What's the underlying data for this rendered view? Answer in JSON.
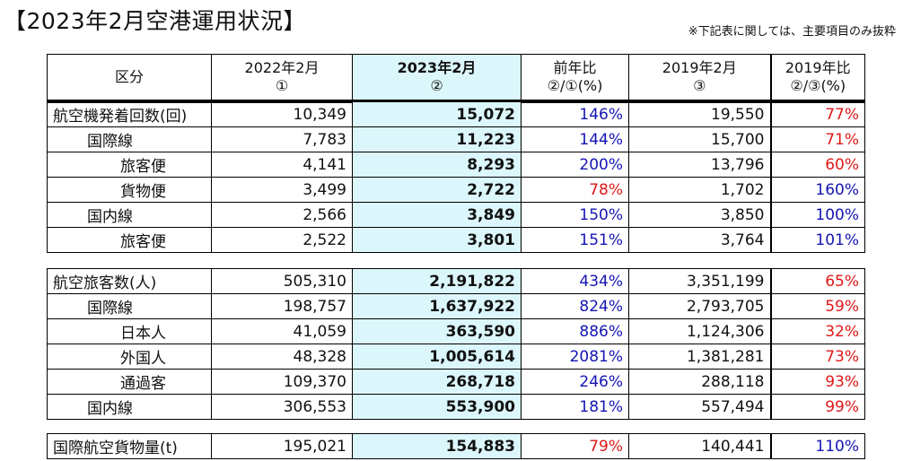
{
  "title": "【2023年2月空港運用状況】",
  "note": "※下記表に関しては、主要項目のみ抜粋",
  "headers": [
    {
      "l1": "区分",
      "l2": ""
    },
    {
      "l1": "2022年2月",
      "l2": "①"
    },
    {
      "l1": "2023年2月",
      "l2": "②"
    },
    {
      "l1": "前年比",
      "l2": "②/①(%)"
    },
    {
      "l1": "2019年2月",
      "l2": "③"
    },
    {
      "l1": "2019年比",
      "l2": "②/③(%)"
    }
  ],
  "colors": {
    "highlight": "#dcf7fb",
    "up": "#1414b4",
    "down": "#e01818"
  },
  "sections": [
    {
      "rows": [
        {
          "label": "航空機発着回数(回)",
          "indent": 0,
          "y2022": "10,349",
          "y2023": "15,072",
          "yoy": "146%",
          "yoy_c": "blue",
          "y2019": "19,550",
          "vs2019": "77%",
          "vs_c": "red"
        },
        {
          "label": "国際線",
          "indent": 1,
          "y2022": "7,783",
          "y2023": "11,223",
          "yoy": "144%",
          "yoy_c": "blue",
          "y2019": "15,700",
          "vs2019": "71%",
          "vs_c": "red"
        },
        {
          "label": "旅客便",
          "indent": 2,
          "y2022": "4,141",
          "y2023": "8,293",
          "yoy": "200%",
          "yoy_c": "blue",
          "y2019": "13,796",
          "vs2019": "60%",
          "vs_c": "red"
        },
        {
          "label": "貨物便",
          "indent": 2,
          "y2022": "3,499",
          "y2023": "2,722",
          "yoy": "78%",
          "yoy_c": "red",
          "y2019": "1,702",
          "vs2019": "160%",
          "vs_c": "blue"
        },
        {
          "label": "国内線",
          "indent": 1,
          "y2022": "2,566",
          "y2023": "3,849",
          "yoy": "150%",
          "yoy_c": "blue",
          "y2019": "3,850",
          "vs2019": "100%",
          "vs_c": "blue"
        },
        {
          "label": "旅客便",
          "indent": 2,
          "y2022": "2,522",
          "y2023": "3,801",
          "yoy": "151%",
          "yoy_c": "blue",
          "y2019": "3,764",
          "vs2019": "101%",
          "vs_c": "blue"
        }
      ]
    },
    {
      "rows": [
        {
          "label": "航空旅客数(人)",
          "indent": 0,
          "y2022": "505,310",
          "y2023": "2,191,822",
          "yoy": "434%",
          "yoy_c": "blue",
          "y2019": "3,351,199",
          "vs2019": "65%",
          "vs_c": "red"
        },
        {
          "label": "国際線",
          "indent": 1,
          "y2022": "198,757",
          "y2023": "1,637,922",
          "yoy": "824%",
          "yoy_c": "blue",
          "y2019": "2,793,705",
          "vs2019": "59%",
          "vs_c": "red"
        },
        {
          "label": "日本人",
          "indent": 2,
          "y2022": "41,059",
          "y2023": "363,590",
          "yoy": "886%",
          "yoy_c": "blue",
          "y2019": "1,124,306",
          "vs2019": "32%",
          "vs_c": "red"
        },
        {
          "label": "外国人",
          "indent": 2,
          "y2022": "48,328",
          "y2023": "1,005,614",
          "yoy": "2081%",
          "yoy_c": "blue",
          "y2019": "1,381,281",
          "vs2019": "73%",
          "vs_c": "red"
        },
        {
          "label": "通過客",
          "indent": 2,
          "y2022": "109,370",
          "y2023": "268,718",
          "yoy": "246%",
          "yoy_c": "blue",
          "y2019": "288,118",
          "vs2019": "93%",
          "vs_c": "red"
        },
        {
          "label": "国内線",
          "indent": 1,
          "y2022": "306,553",
          "y2023": "553,900",
          "yoy": "181%",
          "yoy_c": "blue",
          "y2019": "557,494",
          "vs2019": "99%",
          "vs_c": "red"
        }
      ]
    },
    {
      "rows": [
        {
          "label": "国際航空貨物量(t)",
          "indent": 0,
          "y2022": "195,021",
          "y2023": "154,883",
          "yoy": "79%",
          "yoy_c": "red",
          "y2019": "140,441",
          "vs2019": "110%",
          "vs_c": "blue"
        }
      ]
    }
  ]
}
